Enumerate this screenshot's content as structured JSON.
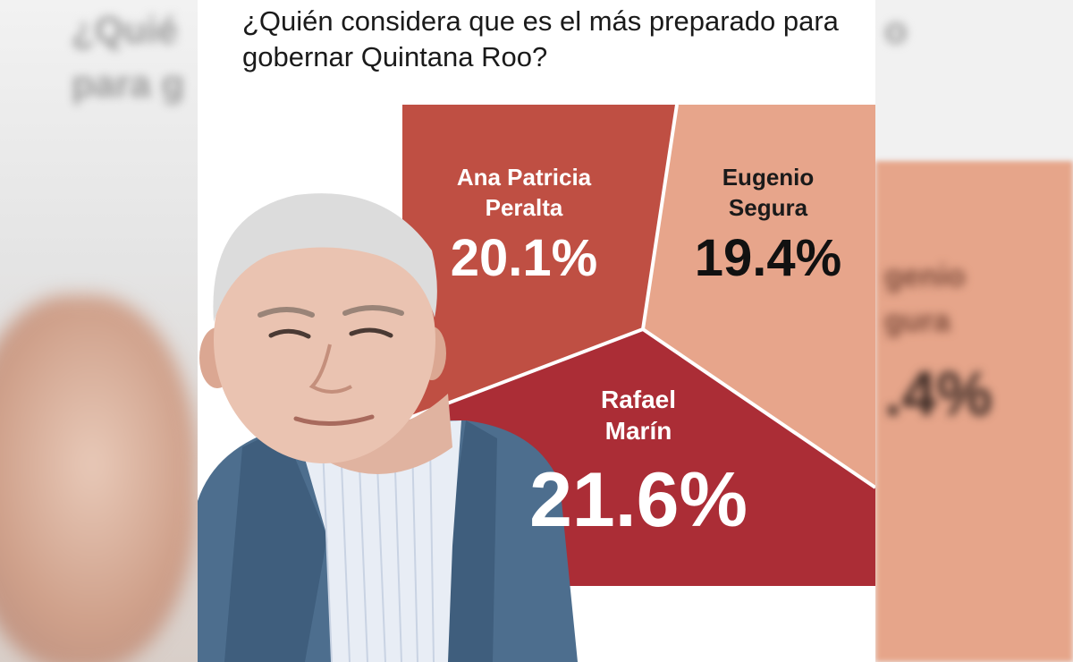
{
  "question": "¿Quién considera que es el más preparado para gobernar Quintana Roo?",
  "colors": {
    "ana": "#bf4f43",
    "eugenio": "#e7a58b",
    "rafael": "#ab2d36",
    "divider": "#ffffff"
  },
  "chart_data": {
    "type": "pie",
    "title": "¿Quién considera que es el más preparado para gobernar Quintana Roo?",
    "slices": [
      {
        "name_line1": "Ana Patricia",
        "name_line2": "Peralta",
        "value": 20.1,
        "label": "20.1%"
      },
      {
        "name_line1": "Eugenio",
        "name_line2": "Segura",
        "value": 19.4,
        "label": "19.4%"
      },
      {
        "name_line1": "Rafael",
        "name_line2": "Marín",
        "value": 21.6,
        "label": "21.6%"
      }
    ]
  }
}
